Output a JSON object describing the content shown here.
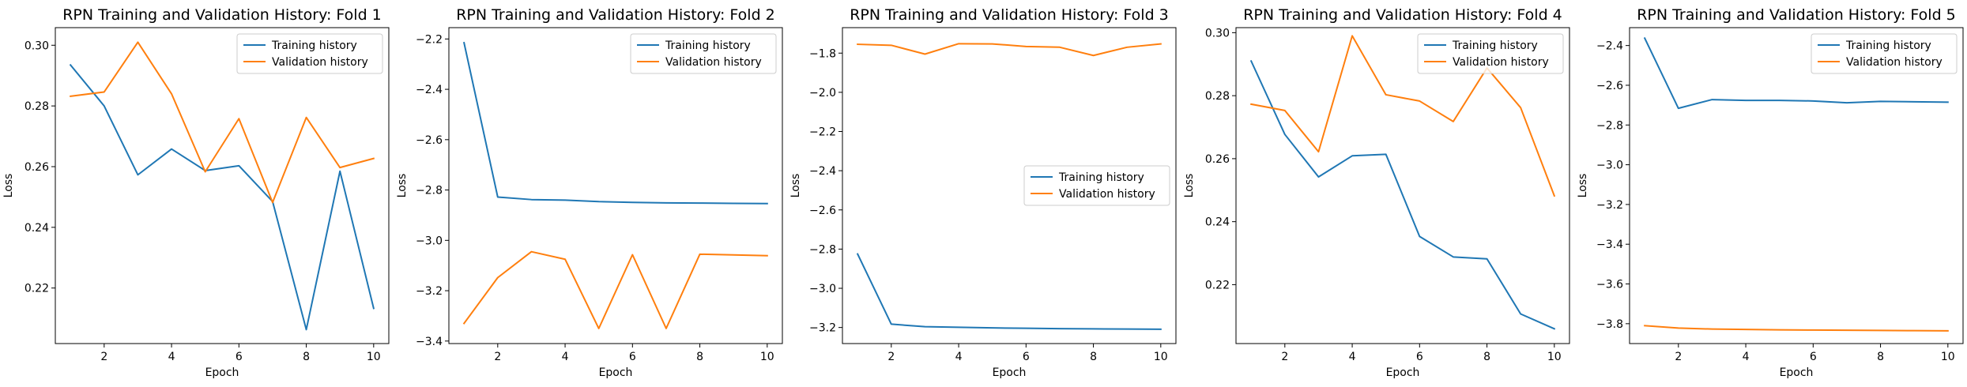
{
  "colors": {
    "training": "#1f77b4",
    "validation": "#ff7f0e"
  },
  "chart_data": [
    {
      "type": "line",
      "title": "RPN Training and Validation History: Fold 1",
      "xlabel": "Epoch",
      "ylabel": "Loss",
      "x": [
        1,
        2,
        3,
        4,
        5,
        6,
        7,
        8,
        9,
        10
      ],
      "xlim": [
        0.55,
        10.45
      ],
      "ylim": [
        0.2017,
        0.3058
      ],
      "xticks": [
        2,
        4,
        6,
        8,
        10
      ],
      "xtick_labels": [
        "2",
        "4",
        "6",
        "8",
        "10"
      ],
      "yticks": [
        0.22,
        0.24,
        0.26,
        0.28,
        0.3
      ],
      "ytick_labels": [
        "0.22",
        "0.24",
        "0.26",
        "0.28",
        "0.30"
      ],
      "legend": "top-right",
      "series": [
        {
          "name": "Training history",
          "color": "training",
          "values": [
            0.2935,
            0.28,
            0.2573,
            0.2658,
            0.2587,
            0.2603,
            0.2485,
            0.2063,
            0.2585,
            0.2133
          ]
        },
        {
          "name": "Validation history",
          "color": "validation",
          "values": [
            0.2832,
            0.2846,
            0.301,
            0.284,
            0.2583,
            0.2758,
            0.2482,
            0.2762,
            0.2597,
            0.2627
          ]
        }
      ]
    },
    {
      "type": "line",
      "title": "RPN Training and Validation History: Fold 2",
      "xlabel": "Epoch",
      "ylabel": "Loss",
      "x": [
        1,
        2,
        3,
        4,
        5,
        6,
        7,
        8,
        9,
        10
      ],
      "xlim": [
        0.55,
        10.45
      ],
      "ylim": [
        -3.41,
        -2.155
      ],
      "xticks": [
        2,
        4,
        6,
        8,
        10
      ],
      "xtick_labels": [
        "2",
        "4",
        "6",
        "8",
        "10"
      ],
      "yticks": [
        -3.4,
        -3.2,
        -3.0,
        -2.8,
        -2.6,
        -2.4,
        -2.2
      ],
      "ytick_labels": [
        "−3.4",
        "−3.2",
        "−3.0",
        "−2.8",
        "−2.6",
        "−2.4",
        "−2.2"
      ],
      "legend": "top-right",
      "series": [
        {
          "name": "Training history",
          "color": "training",
          "values": [
            -2.215,
            -2.828,
            -2.838,
            -2.84,
            -2.846,
            -2.849,
            -2.851,
            -2.852,
            -2.853,
            -2.854
          ]
        },
        {
          "name": "Validation history",
          "color": "validation",
          "values": [
            -3.33,
            -3.148,
            -3.045,
            -3.075,
            -3.35,
            -3.057,
            -3.35,
            -3.055,
            -3.058,
            -3.061
          ]
        }
      ]
    },
    {
      "type": "line",
      "title": "RPN Training and Validation History: Fold 3",
      "xlabel": "Epoch",
      "ylabel": "Loss",
      "x": [
        1,
        2,
        3,
        4,
        5,
        6,
        7,
        8,
        9,
        10
      ],
      "xlim": [
        0.55,
        10.45
      ],
      "ylim": [
        -3.282,
        -1.67
      ],
      "xticks": [
        2,
        4,
        6,
        8,
        10
      ],
      "xtick_labels": [
        "2",
        "4",
        "6",
        "8",
        "10"
      ],
      "yticks": [
        -3.2,
        -3.0,
        -2.8,
        -2.6,
        -2.4,
        -2.2,
        -2.0,
        -1.8
      ],
      "ytick_labels": [
        "−3.2",
        "−3.0",
        "−2.8",
        "−2.6",
        "−2.4",
        "−2.2",
        "−2.0",
        "−1.8"
      ],
      "legend": "center-right",
      "series": [
        {
          "name": "Training history",
          "color": "training",
          "values": [
            -2.825,
            -3.183,
            -3.196,
            -3.199,
            -3.202,
            -3.204,
            -3.206,
            -3.207,
            -3.208,
            -3.209
          ]
        },
        {
          "name": "Validation history",
          "color": "validation",
          "values": [
            -1.755,
            -1.76,
            -1.805,
            -1.752,
            -1.753,
            -1.766,
            -1.77,
            -1.812,
            -1.77,
            -1.753
          ]
        }
      ]
    },
    {
      "type": "line",
      "title": "RPN Training and Validation History: Fold 4",
      "xlabel": "Epoch",
      "ylabel": "Loss",
      "x": [
        1,
        2,
        3,
        4,
        5,
        6,
        7,
        8,
        9,
        10
      ],
      "xlim": [
        0.55,
        10.45
      ],
      "ylim": [
        0.2013,
        0.3016
      ],
      "xticks": [
        2,
        4,
        6,
        8,
        10
      ],
      "xtick_labels": [
        "2",
        "4",
        "6",
        "8",
        "10"
      ],
      "yticks": [
        0.22,
        0.24,
        0.26,
        0.28,
        0.3
      ],
      "ytick_labels": [
        "0.22",
        "0.24",
        "0.26",
        "0.28",
        "0.30"
      ],
      "legend": "top-right",
      "series": [
        {
          "name": "Training history",
          "color": "training",
          "values": [
            0.291,
            0.2677,
            0.2542,
            0.2609,
            0.2614,
            0.2353,
            0.2288,
            0.2282,
            0.2107,
            0.206
          ]
        },
        {
          "name": "Validation history",
          "color": "validation",
          "values": [
            0.2773,
            0.2753,
            0.2622,
            0.299,
            0.2803,
            0.2783,
            0.2718,
            0.2888,
            0.2762,
            0.2482
          ]
        }
      ]
    },
    {
      "type": "line",
      "title": "RPN Training and Validation History: Fold 5",
      "xlabel": "Epoch",
      "ylabel": "Loss",
      "x": [
        1,
        2,
        3,
        4,
        5,
        6,
        7,
        8,
        9,
        10
      ],
      "xlim": [
        0.55,
        10.45
      ],
      "ylim": [
        -3.9,
        -2.31
      ],
      "xticks": [
        2,
        4,
        6,
        8,
        10
      ],
      "xtick_labels": [
        "2",
        "4",
        "6",
        "8",
        "10"
      ],
      "yticks": [
        -3.8,
        -3.6,
        -3.4,
        -3.2,
        -3.0,
        -2.8,
        -2.6,
        -2.4
      ],
      "ytick_labels": [
        "−3.8",
        "−3.6",
        "−3.4",
        "−3.2",
        "−3.0",
        "−2.8",
        "−2.6",
        "−2.4"
      ],
      "legend": "top-right",
      "series": [
        {
          "name": "Training history",
          "color": "training",
          "values": [
            -2.363,
            -2.716,
            -2.672,
            -2.676,
            -2.676,
            -2.679,
            -2.688,
            -2.681,
            -2.683,
            -2.685
          ]
        },
        {
          "name": "Validation history",
          "color": "validation",
          "values": [
            -3.81,
            -3.822,
            -3.827,
            -3.829,
            -3.831,
            -3.832,
            -3.833,
            -3.834,
            -3.835,
            -3.836
          ]
        }
      ]
    }
  ]
}
